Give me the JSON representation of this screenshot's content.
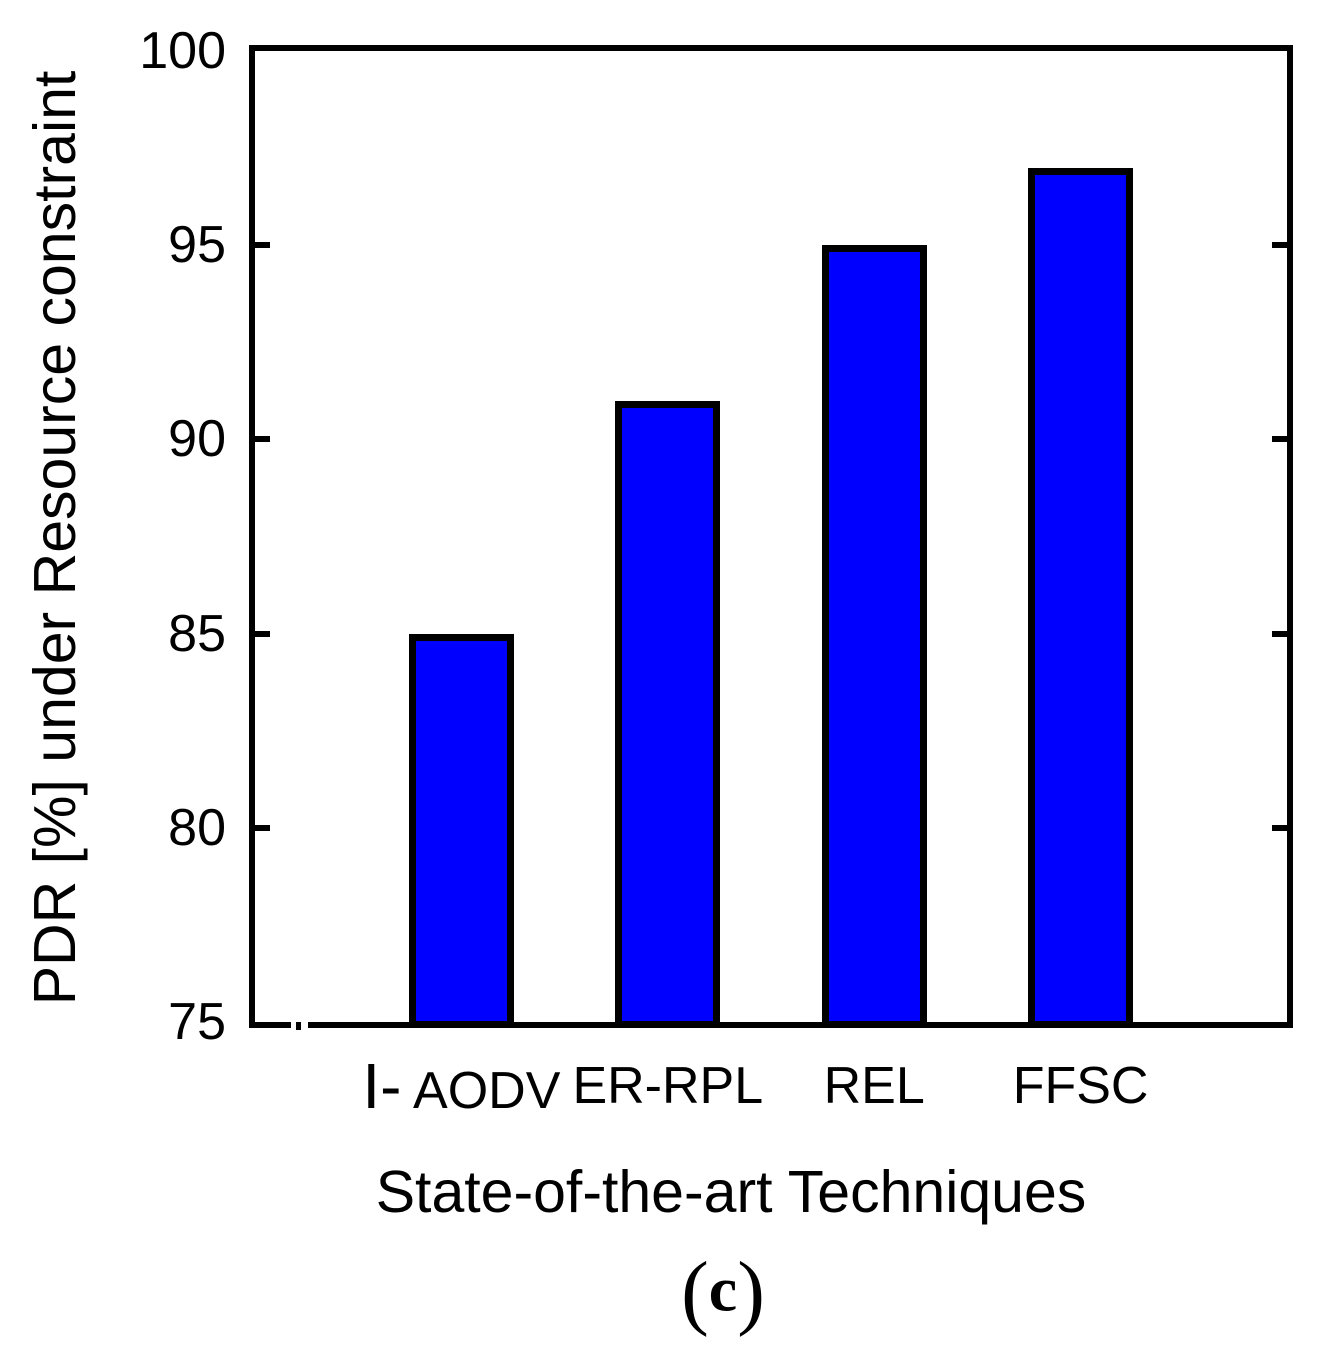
{
  "figure": {
    "caption": "(c)"
  },
  "chart_data": {
    "type": "bar",
    "title": "",
    "xlabel": "State-of-the-art Techniques",
    "ylabel": "PDR [%] under Resource constraint",
    "categories": [
      "I- AODV",
      "ER-RPL",
      "REL",
      "FFSC"
    ],
    "values": [
      85,
      91,
      95,
      97
    ],
    "ylim": [
      75,
      100
    ],
    "y_ticks": [
      75,
      80,
      85,
      90,
      95,
      100
    ],
    "x_tick_emphasis": {
      "0": "I-"
    },
    "bar_fill_color": "#0000ff",
    "bar_edge_color": "#000000",
    "axis_color": "#000000",
    "grid": false,
    "legend": null
  }
}
